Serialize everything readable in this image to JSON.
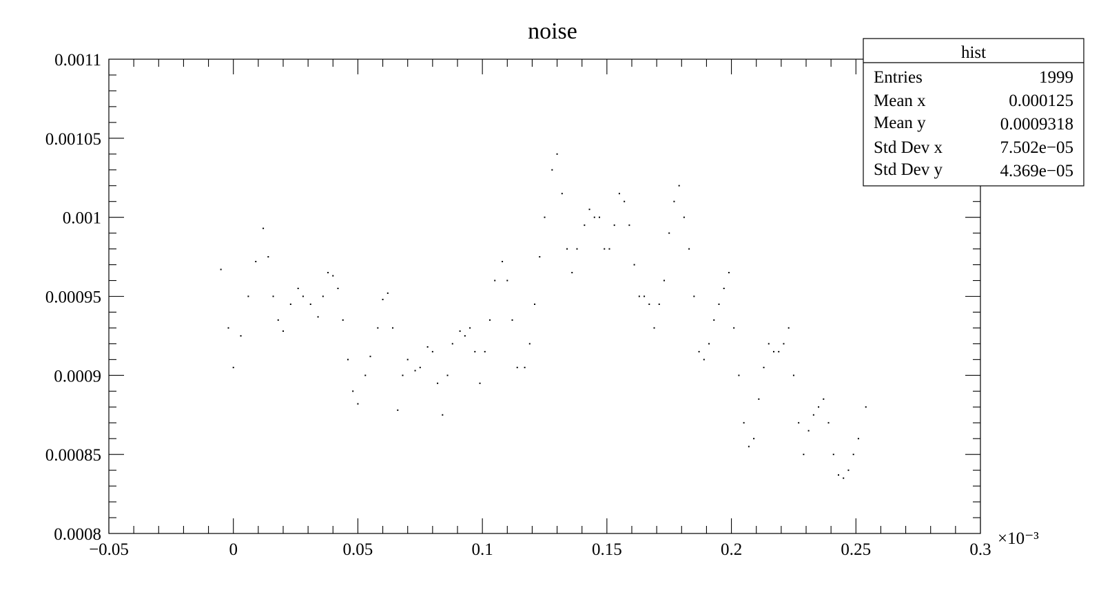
{
  "chart_data": {
    "type": "scatter",
    "title": "noise",
    "xlabel": "",
    "ylabel": "",
    "x_multiplier_label": "×10⁻³",
    "xlim": [
      -0.05,
      0.3
    ],
    "ylim": [
      0.0008,
      0.0011
    ],
    "x_ticks": [
      {
        "value": -0.05,
        "label": "−0.05"
      },
      {
        "value": 0,
        "label": "0"
      },
      {
        "value": 0.05,
        "label": "0.05"
      },
      {
        "value": 0.1,
        "label": "0.1"
      },
      {
        "value": 0.15,
        "label": "0.15"
      },
      {
        "value": 0.2,
        "label": "0.2"
      },
      {
        "value": 0.25,
        "label": "0.25"
      },
      {
        "value": 0.3,
        "label": "0.3"
      }
    ],
    "y_ticks": [
      {
        "value": 0.0008,
        "label": "0.0008"
      },
      {
        "value": 0.00085,
        "label": "0.00085"
      },
      {
        "value": 0.0009,
        "label": "0.0009"
      },
      {
        "value": 0.00095,
        "label": "0.00095"
      },
      {
        "value": 0.001,
        "label": "0.001"
      },
      {
        "value": 0.00105,
        "label": "0.00105"
      },
      {
        "value": 0.0011,
        "label": "0.0011"
      }
    ],
    "grid": false,
    "series": [
      {
        "color": "#000000",
        "x": [
          -0.005,
          -0.002,
          0.0,
          0.003,
          0.006,
          0.009,
          0.012,
          0.014,
          0.016,
          0.018,
          0.02,
          0.023,
          0.026,
          0.028,
          0.031,
          0.034,
          0.036,
          0.038,
          0.04,
          0.042,
          0.044,
          0.046,
          0.048,
          0.05,
          0.053,
          0.055,
          0.058,
          0.06,
          0.062,
          0.064,
          0.066,
          0.068,
          0.07,
          0.073,
          0.075,
          0.078,
          0.08,
          0.082,
          0.084,
          0.086,
          0.088,
          0.091,
          0.093,
          0.095,
          0.097,
          0.099,
          0.101,
          0.103,
          0.105,
          0.108,
          0.11,
          0.112,
          0.114,
          0.117,
          0.119,
          0.121,
          0.123,
          0.125,
          0.128,
          0.13,
          0.132,
          0.134,
          0.136,
          0.138,
          0.141,
          0.143,
          0.145,
          0.147,
          0.149,
          0.151,
          0.153,
          0.155,
          0.157,
          0.159,
          0.161,
          0.163,
          0.165,
          0.167,
          0.169,
          0.171,
          0.173,
          0.175,
          0.177,
          0.179,
          0.181,
          0.183,
          0.185,
          0.187,
          0.189,
          0.191,
          0.193,
          0.195,
          0.197,
          0.199,
          0.201,
          0.203,
          0.205,
          0.207,
          0.209,
          0.211,
          0.213,
          0.215,
          0.217,
          0.219,
          0.221,
          0.223,
          0.225,
          0.227,
          0.229,
          0.231,
          0.233,
          0.235,
          0.237,
          0.239,
          0.241,
          0.243,
          0.245,
          0.247,
          0.249,
          0.251,
          0.254
        ],
        "y": [
          0.000967,
          0.00093,
          0.000905,
          0.000925,
          0.00095,
          0.000972,
          0.000993,
          0.000975,
          0.00095,
          0.000935,
          0.000928,
          0.000945,
          0.000955,
          0.00095,
          0.000945,
          0.000937,
          0.00095,
          0.000965,
          0.000963,
          0.000955,
          0.000935,
          0.00091,
          0.00089,
          0.000882,
          0.0009,
          0.000912,
          0.00093,
          0.000948,
          0.000952,
          0.00093,
          0.000878,
          0.0009,
          0.00091,
          0.000903,
          0.000905,
          0.000918,
          0.000915,
          0.000895,
          0.000875,
          0.0009,
          0.00092,
          0.000928,
          0.000925,
          0.00093,
          0.000915,
          0.000895,
          0.000915,
          0.000935,
          0.00096,
          0.000972,
          0.00096,
          0.000935,
          0.000905,
          0.000905,
          0.00092,
          0.000945,
          0.000975,
          0.001,
          0.00103,
          0.00104,
          0.001015,
          0.00098,
          0.000965,
          0.00098,
          0.000995,
          0.001005,
          0.001,
          0.001,
          0.00098,
          0.00098,
          0.000995,
          0.001015,
          0.00101,
          0.000995,
          0.00097,
          0.00095,
          0.00095,
          0.000945,
          0.00093,
          0.000945,
          0.00096,
          0.00099,
          0.00101,
          0.00102,
          0.001,
          0.00098,
          0.00095,
          0.000915,
          0.00091,
          0.00092,
          0.000935,
          0.000945,
          0.000955,
          0.000965,
          0.00093,
          0.0009,
          0.00087,
          0.000855,
          0.00086,
          0.000885,
          0.000905,
          0.00092,
          0.000915,
          0.000915,
          0.00092,
          0.00093,
          0.0009,
          0.00087,
          0.00085,
          0.000865,
          0.000875,
          0.00088,
          0.000885,
          0.00087,
          0.00085,
          0.000837,
          0.000835,
          0.00084,
          0.00085,
          0.00086,
          0.00088
        ]
      }
    ]
  },
  "stats_box": {
    "title": "hist",
    "rows": [
      {
        "label": "Entries",
        "value": "1999"
      },
      {
        "label": "Mean x",
        "value": "0.000125"
      },
      {
        "label": "Mean y",
        "value": "0.0009318"
      },
      {
        "label": "Std Dev x",
        "value": "7.502e−05"
      },
      {
        "label": "Std Dev y",
        "value": "4.369e−05"
      }
    ]
  }
}
